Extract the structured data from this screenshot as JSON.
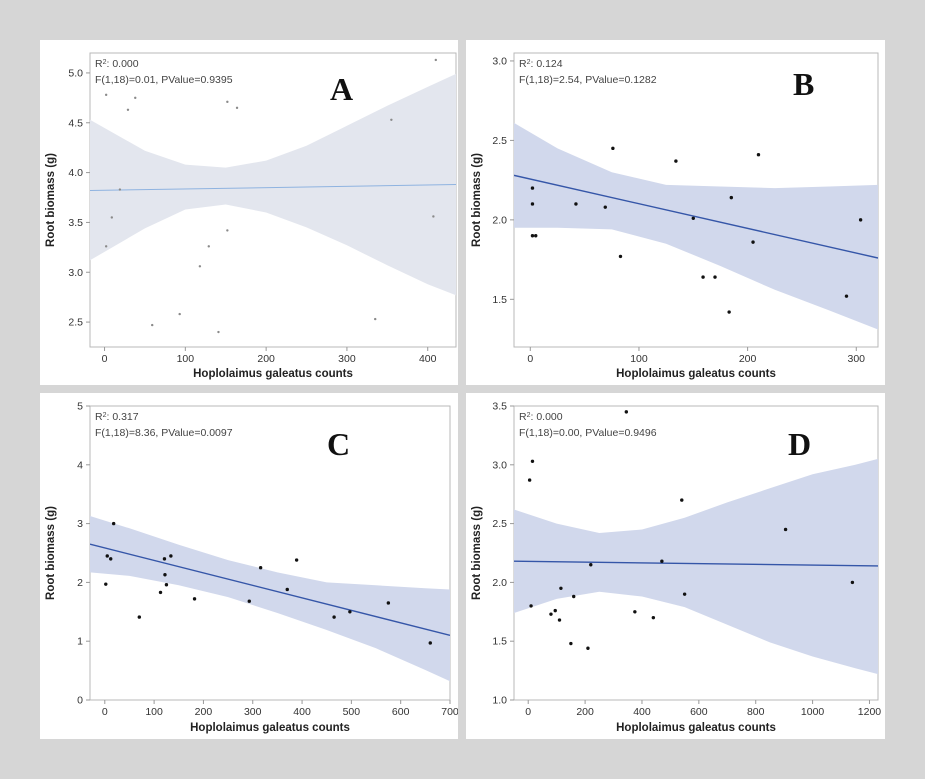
{
  "chart_data": [
    {
      "type": "scatter",
      "panel": "A",
      "title": "A",
      "stats": {
        "r2_label": "R",
        "r2_sup": "2",
        "r2_value": ": 0.000",
        "f_line": "F(1,18)=0.01, PValue=0.9395"
      },
      "xlabel": "Hoplolaimus galeatus counts",
      "ylabel": "Root biomass (g)",
      "xlim": [
        -18,
        435
      ],
      "ylim": [
        2.25,
        5.2
      ],
      "xticks": [
        0,
        100,
        200,
        300,
        400
      ],
      "yticks": [
        2.5,
        3.0,
        3.5,
        4.0,
        4.5,
        5.0
      ],
      "ytick_labels": [
        "2.5",
        "3.0",
        "3.5",
        "4.0",
        "4.5",
        "5.0"
      ],
      "points": [
        [
          2,
          4.78
        ],
        [
          2,
          3.26
        ],
        [
          9,
          3.55
        ],
        [
          19,
          3.83
        ],
        [
          29,
          4.63
        ],
        [
          38,
          4.75
        ],
        [
          59,
          2.47
        ],
        [
          93,
          2.58
        ],
        [
          118,
          3.06
        ],
        [
          129,
          3.26
        ],
        [
          141,
          2.4
        ],
        [
          152,
          4.71
        ],
        [
          152,
          3.42
        ],
        [
          164,
          4.65
        ],
        [
          335,
          2.53
        ],
        [
          355,
          4.53
        ],
        [
          407,
          3.56
        ],
        [
          410,
          5.13
        ]
      ],
      "fit": {
        "x": [
          -18,
          435
        ],
        "y": [
          3.82,
          3.88
        ]
      },
      "ci_upper": [
        [
          -18,
          4.53
        ],
        [
          50,
          4.22
        ],
        [
          100,
          4.08
        ],
        [
          150,
          4.05
        ],
        [
          200,
          4.12
        ],
        [
          250,
          4.27
        ],
        [
          300,
          4.47
        ],
        [
          350,
          4.67
        ],
        [
          400,
          4.86
        ],
        [
          435,
          4.99
        ]
      ],
      "ci_lower": [
        [
          -18,
          3.12
        ],
        [
          50,
          3.44
        ],
        [
          100,
          3.63
        ],
        [
          150,
          3.68
        ],
        [
          200,
          3.6
        ],
        [
          250,
          3.45
        ],
        [
          300,
          3.27
        ],
        [
          350,
          3.07
        ],
        [
          400,
          2.88
        ],
        [
          435,
          2.77
        ]
      ],
      "colors": {
        "band": "#e3e6ee",
        "line": "#8fb3e0",
        "point": "#8a8a8a"
      },
      "point_style": "faint"
    },
    {
      "type": "scatter",
      "panel": "B",
      "title": "B",
      "stats": {
        "r2_label": "R",
        "r2_sup": "2",
        "r2_value": ": 0.124",
        "f_line": "F(1,18)=2.54, PValue=0.1282"
      },
      "xlabel": "Hoplolaimus galeatus counts",
      "ylabel": "Root biomass (g)",
      "xlim": [
        -15,
        320
      ],
      "ylim": [
        1.2,
        3.05
      ],
      "xticks": [
        0,
        100,
        200,
        300
      ],
      "yticks": [
        1.5,
        2.0,
        2.5,
        3.0
      ],
      "ytick_labels": [
        "1.5",
        "2.0",
        "2.5",
        "3.0"
      ],
      "points": [
        [
          2,
          2.2
        ],
        [
          2,
          2.1
        ],
        [
          2,
          1.9
        ],
        [
          5,
          1.9
        ],
        [
          42,
          2.1
        ],
        [
          69,
          2.08
        ],
        [
          76,
          2.45
        ],
        [
          83,
          1.77
        ],
        [
          134,
          2.37
        ],
        [
          150,
          2.01
        ],
        [
          159,
          1.64
        ],
        [
          170,
          1.64
        ],
        [
          183,
          1.42
        ],
        [
          185,
          2.14
        ],
        [
          205,
          1.86
        ],
        [
          210,
          2.41
        ],
        [
          291,
          1.52
        ],
        [
          304,
          2.0
        ]
      ],
      "fit": {
        "x": [
          -15,
          320
        ],
        "y": [
          2.28,
          1.76
        ]
      },
      "ci_upper": [
        [
          -15,
          2.61
        ],
        [
          25,
          2.45
        ],
        [
          75,
          2.3
        ],
        [
          125,
          2.22
        ],
        [
          175,
          2.21
        ],
        [
          225,
          2.2
        ],
        [
          275,
          2.21
        ],
        [
          320,
          2.22
        ]
      ],
      "ci_lower": [
        [
          -15,
          1.95
        ],
        [
          25,
          1.95
        ],
        [
          75,
          1.94
        ],
        [
          125,
          1.85
        ],
        [
          175,
          1.71
        ],
        [
          225,
          1.56
        ],
        [
          275,
          1.43
        ],
        [
          320,
          1.31
        ]
      ],
      "colors": {
        "band": "#d1d8ec",
        "line": "#3556a8",
        "point": "#111111"
      },
      "point_style": "dark"
    },
    {
      "type": "scatter",
      "panel": "C",
      "title": "C",
      "stats": {
        "r2_label": "R",
        "r2_sup": "2",
        "r2_value": ": 0.317",
        "f_line": "F(1,18)=8.36, PValue=0.0097"
      },
      "xlabel": "Hoplolaimus galeatus counts",
      "ylabel": "Root biomass (g)",
      "xlim": [
        -30,
        700
      ],
      "ylim": [
        0,
        5
      ],
      "xticks": [
        0,
        100,
        200,
        300,
        400,
        500,
        600,
        700
      ],
      "yticks": [
        0,
        1,
        2,
        3,
        4,
        5
      ],
      "ytick_labels": [
        "0",
        "1",
        "2",
        "3",
        "4",
        "5"
      ],
      "points": [
        [
          2,
          1.97
        ],
        [
          5,
          2.45
        ],
        [
          12,
          2.4
        ],
        [
          18,
          3.0
        ],
        [
          70,
          1.41
        ],
        [
          113,
          1.83
        ],
        [
          121,
          2.4
        ],
        [
          122,
          2.13
        ],
        [
          125,
          1.96
        ],
        [
          134,
          2.45
        ],
        [
          182,
          1.72
        ],
        [
          293,
          1.68
        ],
        [
          316,
          2.25
        ],
        [
          370,
          1.88
        ],
        [
          389,
          2.38
        ],
        [
          465,
          1.41
        ],
        [
          497,
          1.5
        ],
        [
          575,
          1.65
        ],
        [
          660,
          0.97
        ]
      ],
      "fit": {
        "x": [
          -30,
          700
        ],
        "y": [
          2.65,
          1.1
        ]
      },
      "ci_upper": [
        [
          -30,
          3.13
        ],
        [
          50,
          2.92
        ],
        [
          150,
          2.64
        ],
        [
          250,
          2.38
        ],
        [
          350,
          2.17
        ],
        [
          450,
          2.0
        ],
        [
          550,
          1.95
        ],
        [
          650,
          1.9
        ],
        [
          700,
          1.88
        ]
      ],
      "ci_lower": [
        [
          -30,
          2.17
        ],
        [
          50,
          2.11
        ],
        [
          150,
          1.95
        ],
        [
          250,
          1.75
        ],
        [
          350,
          1.48
        ],
        [
          450,
          1.19
        ],
        [
          550,
          0.88
        ],
        [
          650,
          0.51
        ],
        [
          700,
          0.32
        ]
      ],
      "colors": {
        "band": "#d1d8ec",
        "line": "#3556a8",
        "point": "#111111"
      },
      "point_style": "dark"
    },
    {
      "type": "scatter",
      "panel": "D",
      "title": "D",
      "stats": {
        "r2_label": "R",
        "r2_sup": "2",
        "r2_value": ": 0.000",
        "f_line": "F(1,18)=0.00, PValue=0.9496"
      },
      "xlabel": "Hoplolaimus galeatus counts",
      "ylabel": "Root biomass (g)",
      "xlim": [
        -50,
        1230
      ],
      "ylim": [
        1.0,
        3.5
      ],
      "xticks": [
        0,
        200,
        400,
        600,
        800,
        1000,
        1200
      ],
      "yticks": [
        1.0,
        1.5,
        2.0,
        2.5,
        3.0,
        3.5
      ],
      "ytick_labels": [
        "1.0",
        "1.5",
        "2.0",
        "2.5",
        "3.0",
        "3.5"
      ],
      "points": [
        [
          5,
          2.87
        ],
        [
          10,
          1.8
        ],
        [
          15,
          3.03
        ],
        [
          80,
          1.73
        ],
        [
          95,
          1.76
        ],
        [
          110,
          1.68
        ],
        [
          115,
          1.95
        ],
        [
          150,
          1.48
        ],
        [
          160,
          1.88
        ],
        [
          210,
          1.44
        ],
        [
          220,
          2.15
        ],
        [
          345,
          3.45
        ],
        [
          375,
          1.75
        ],
        [
          440,
          1.7
        ],
        [
          470,
          2.18
        ],
        [
          540,
          2.7
        ],
        [
          550,
          1.9
        ],
        [
          905,
          2.45
        ],
        [
          1140,
          2.0
        ]
      ],
      "fit": {
        "x": [
          -50,
          1230
        ],
        "y": [
          2.18,
          2.14
        ]
      },
      "ci_upper": [
        [
          -50,
          2.62
        ],
        [
          100,
          2.5
        ],
        [
          250,
          2.42
        ],
        [
          400,
          2.45
        ],
        [
          550,
          2.55
        ],
        [
          700,
          2.68
        ],
        [
          850,
          2.8
        ],
        [
          1000,
          2.92
        ],
        [
          1150,
          3.0
        ],
        [
          1230,
          3.05
        ]
      ],
      "ci_lower": [
        [
          -50,
          1.74
        ],
        [
          100,
          1.86
        ],
        [
          250,
          1.92
        ],
        [
          400,
          1.88
        ],
        [
          550,
          1.79
        ],
        [
          700,
          1.64
        ],
        [
          850,
          1.49
        ],
        [
          1000,
          1.37
        ],
        [
          1150,
          1.27
        ],
        [
          1230,
          1.22
        ]
      ],
      "colors": {
        "band": "#d1d8ec",
        "line": "#3556a8",
        "point": "#111111"
      },
      "point_style": "dark"
    }
  ]
}
